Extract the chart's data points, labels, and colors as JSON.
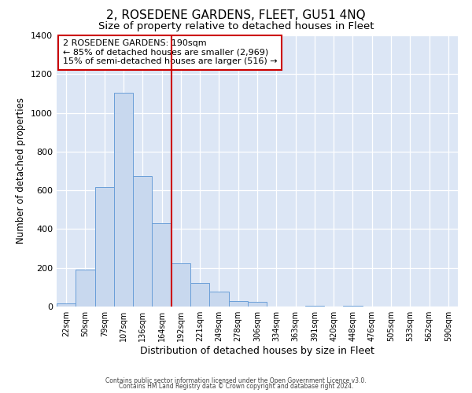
{
  "title": "2, ROSEDENE GARDENS, FLEET, GU51 4NQ",
  "subtitle": "Size of property relative to detached houses in Fleet",
  "xlabel": "Distribution of detached houses by size in Fleet",
  "ylabel": "Number of detached properties",
  "bar_labels": [
    "22sqm",
    "50sqm",
    "79sqm",
    "107sqm",
    "136sqm",
    "164sqm",
    "192sqm",
    "221sqm",
    "249sqm",
    "278sqm",
    "306sqm",
    "334sqm",
    "363sqm",
    "391sqm",
    "420sqm",
    "448sqm",
    "476sqm",
    "505sqm",
    "533sqm",
    "562sqm",
    "590sqm"
  ],
  "bar_values": [
    15,
    192,
    618,
    1103,
    672,
    430,
    225,
    122,
    78,
    30,
    25,
    0,
    0,
    5,
    0,
    5,
    0,
    0,
    0,
    0,
    0
  ],
  "bar_color": "#c8d8ee",
  "bar_edge_color": "#6a9fd8",
  "vline_color": "#cc0000",
  "annotation_title": "2 ROSEDENE GARDENS: 190sqm",
  "annotation_line1": "← 85% of detached houses are smaller (2,969)",
  "annotation_line2": "15% of semi-detached houses are larger (516) →",
  "annotation_box_color": "#ffffff",
  "annotation_box_edge": "#cc0000",
  "ylim": [
    0,
    1400
  ],
  "yticks": [
    0,
    200,
    400,
    600,
    800,
    1000,
    1200,
    1400
  ],
  "footer1": "Contains HM Land Registry data © Crown copyright and database right 2024.",
  "footer2": "Contains public sector information licensed under the Open Government Licence v3.0.",
  "bg_color": "#dce6f5",
  "title_fontsize": 11,
  "subtitle_fontsize": 9.5,
  "title_fontweight": "normal"
}
